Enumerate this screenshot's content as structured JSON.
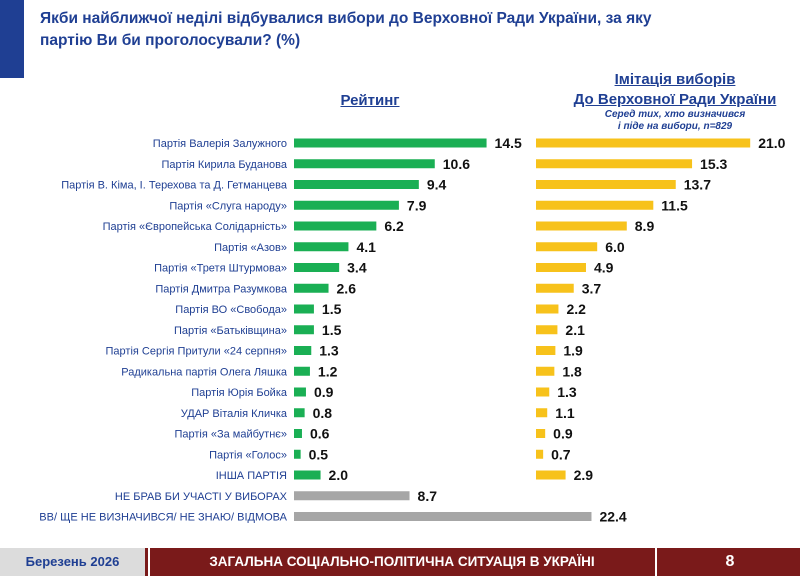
{
  "header": {
    "title": "Якби найближчої неділі відбувалися вибори до Верховної Ради України, за яку партію Ви би проголосували? (%)"
  },
  "footer": {
    "date": "Березень 2026",
    "title": "ЗАГАЛЬНА СОЦІАЛЬНО-ПОЛІТИЧНА СИТУАЦІЯ В УКРАЇНІ",
    "page": "8"
  },
  "colors": {
    "rating_bar": "#1aaf54",
    "other_bar": "#a6a6a6",
    "simulation_bar": "#f7c21b",
    "title": "#1f3f93",
    "footer": "#7a1a1a"
  },
  "chart_data": [
    {
      "type": "bar",
      "orientation": "horizontal",
      "title": "Рейтинг",
      "categories": [
        "Партія Валерія Залужного",
        "Партія Кирила Буданова",
        "Партія В. Кіма,  І. Терехова та Д. Гетманцева",
        "Партія «Слуга народу»",
        "Партія «Європейська Солідарність»",
        "Партія «Азов»",
        "Партія «Третя Штурмова»",
        "Партія Дмитра Разумкова",
        "Партія ВО «Свобода»",
        "Партія «Батьківщина»",
        "Партія Сергія Притули «24 серпня»",
        "Радикальна партія Олега Ляшка",
        "Партія Юрія Бойка",
        "УДАР Віталія Кличка",
        "Партія «За майбутнє»",
        "Партія «Голос»",
        "ІНША ПАРТІЯ",
        "НЕ БРАВ БИ УЧАСТІ У ВИБОРАХ",
        "ВВ/ ЩЕ НЕ ВИЗНАЧИВСЯ/ НЕ ЗНАЮ/ ВІДМОВА"
      ],
      "values": [
        14.5,
        10.6,
        9.4,
        7.9,
        6.2,
        4.1,
        3.4,
        2.6,
        1.5,
        1.5,
        1.3,
        1.2,
        0.9,
        0.8,
        0.6,
        0.5,
        2.0,
        8.7,
        22.4
      ],
      "value_labels": [
        "14.5",
        "10.6",
        "9.4",
        "7.9",
        "6.2",
        "4.1",
        "3.4",
        "2.6",
        "1.5",
        "1.5",
        "1.3",
        "1.2",
        "0.9",
        "0.8",
        "0.6",
        "0.5",
        "2.0",
        "8.7",
        "22.4"
      ],
      "bar_color_groups": [
        "rating",
        "rating",
        "rating",
        "rating",
        "rating",
        "rating",
        "rating",
        "rating",
        "rating",
        "rating",
        "rating",
        "rating",
        "rating",
        "rating",
        "rating",
        "rating",
        "rating",
        "other",
        "other"
      ]
    },
    {
      "type": "bar",
      "orientation": "horizontal",
      "title": "Імітація виборів До Верховної Ради України",
      "title_lines": [
        "Імітація виборів",
        "До Верховної Ради України"
      ],
      "subtitle_lines": [
        "Серед тих, хто визначився",
        "і піде на вибори, n=829"
      ],
      "categories": [
        "Партія Валерія Залужного",
        "Партія Кирила Буданова",
        "Партія В. Кіма,  І. Терехова та Д. Гетманцева",
        "Партія «Слуга народу»",
        "Партія «Європейська Солідарність»",
        "Партія «Азов»",
        "Партія «Третя Штурмова»",
        "Партія Дмитра Разумкова",
        "Партія ВО «Свобода»",
        "Партія «Батьківщина»",
        "Партія Сергія Притули «24 серпня»",
        "Радикальна партія Олега Ляшка",
        "Партія Юрія Бойка",
        "УДАР Віталія Кличка",
        "Партія «За майбутнє»",
        "Партія «Голос»",
        "ІНША ПАРТІЯ"
      ],
      "values": [
        21.0,
        15.3,
        13.7,
        11.5,
        8.9,
        6.0,
        4.9,
        3.7,
        2.2,
        2.1,
        1.9,
        1.8,
        1.3,
        1.1,
        0.9,
        0.7,
        2.9
      ],
      "value_labels": [
        "21.0",
        "15.3",
        "13.7",
        "11.5",
        "8.9",
        "6.0",
        "4.9",
        "3.7",
        "2.2",
        "2.1",
        "1.9",
        "1.8",
        "1.3",
        "1.1",
        "0.9",
        "0.7",
        "2.9"
      ]
    }
  ]
}
